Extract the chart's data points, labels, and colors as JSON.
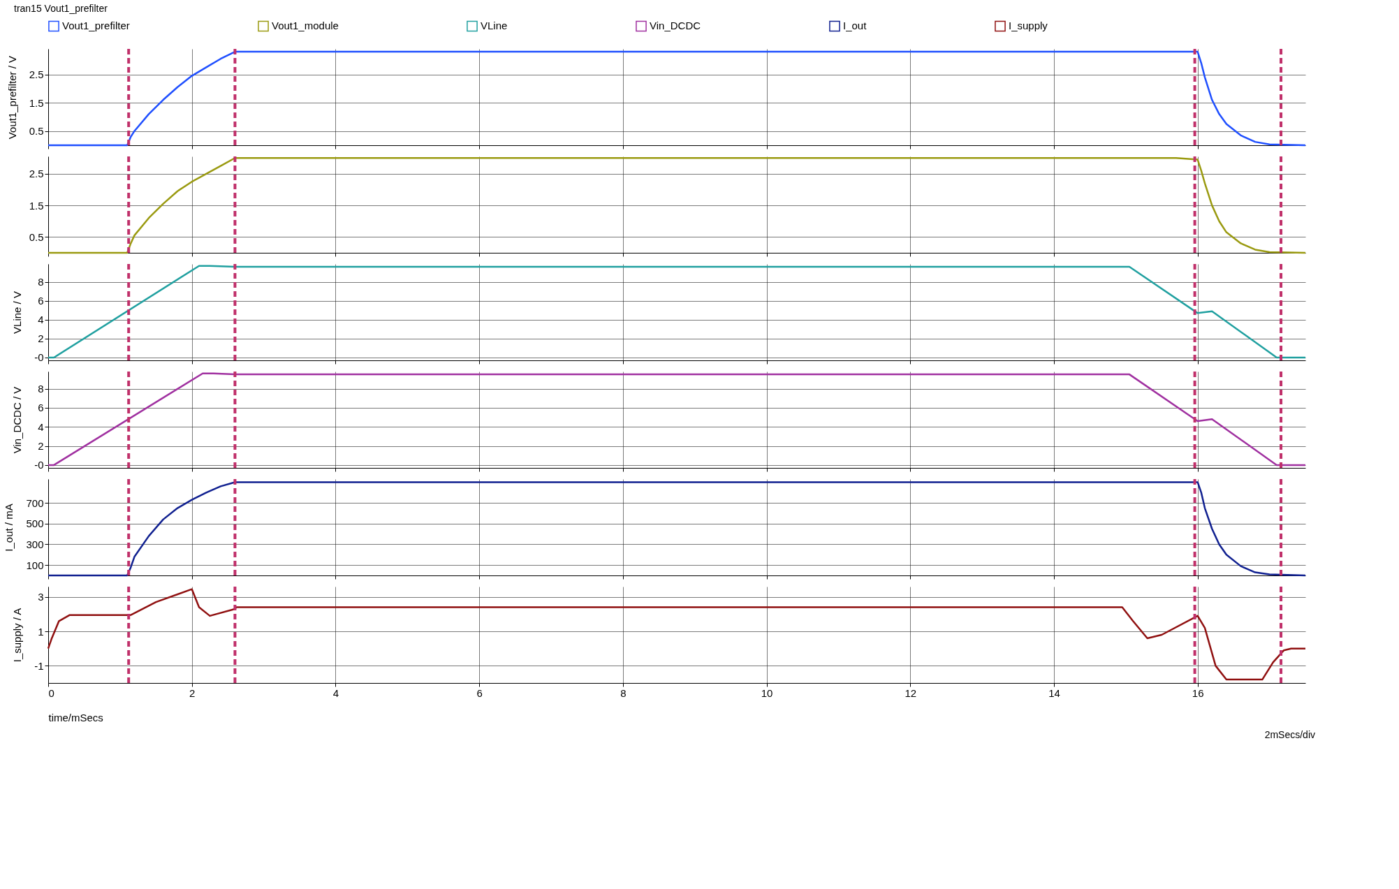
{
  "chart_data": [
    {
      "type": "line",
      "ylabel": "Vout1_prefilter / V",
      "legend": "top",
      "grid": true,
      "tick_labels": "y",
      "annotations": [
        "tran15 Vout1_prefilter"
      ],
      "xlim": [
        0,
        17.5
      ],
      "xticks": [
        0,
        2,
        4,
        6,
        8,
        10,
        12,
        14,
        16
      ],
      "ylim": [
        0,
        3.4
      ],
      "yticks": [
        0.5,
        1.5,
        2.5
      ],
      "ref_lines": [
        {
          "axis": "x",
          "value": 1.12,
          "color": "#c0306a",
          "line_style": "dashed"
        },
        {
          "axis": "x",
          "value": 2.6,
          "color": "#c0306a",
          "line_style": "dashed"
        },
        {
          "axis": "x",
          "value": 15.96,
          "color": "#c0306a",
          "line_style": "dashed"
        },
        {
          "axis": "x",
          "value": 17.16,
          "color": "#c0306a",
          "line_style": "dashed"
        }
      ],
      "series": [
        {
          "name": "Vout1_prefilter",
          "color": "#1f4fff",
          "x": [
            0,
            1.1,
            1.15,
            1.2,
            1.4,
            1.6,
            1.8,
            2.0,
            2.2,
            2.4,
            2.6,
            15.7,
            16.0,
            16.05,
            16.1,
            16.2,
            16.3,
            16.4,
            16.6,
            16.8,
            17.0,
            17.5
          ],
          "values": [
            0,
            0,
            0.3,
            0.5,
            1.1,
            1.6,
            2.05,
            2.45,
            2.75,
            3.05,
            3.3,
            3.3,
            3.3,
            2.9,
            2.4,
            1.6,
            1.1,
            0.75,
            0.35,
            0.12,
            0.03,
            0
          ]
        }
      ]
    },
    {
      "type": "line",
      "legend": "top",
      "grid": true,
      "tick_labels": "y",
      "xlim": [
        0,
        17.5
      ],
      "xticks": [
        0,
        2,
        4,
        6,
        8,
        10,
        12,
        14,
        16
      ],
      "ylim": [
        0,
        3.05
      ],
      "yticks": [
        0.5,
        1.5,
        2.5
      ],
      "ref_lines": [
        {
          "axis": "x",
          "value": 1.12,
          "color": "#c0306a",
          "line_style": "dashed"
        },
        {
          "axis": "x",
          "value": 2.6,
          "color": "#c0306a",
          "line_style": "dashed"
        },
        {
          "axis": "x",
          "value": 15.96,
          "color": "#c0306a",
          "line_style": "dashed"
        },
        {
          "axis": "x",
          "value": 17.16,
          "color": "#c0306a",
          "line_style": "dashed"
        }
      ],
      "series": [
        {
          "name": "Vout1_module",
          "color": "#9a9a10",
          "x": [
            0,
            1.1,
            1.15,
            1.2,
            1.4,
            1.6,
            1.8,
            2.0,
            2.2,
            2.4,
            2.6,
            15.7,
            16.0,
            16.05,
            16.1,
            16.2,
            16.3,
            16.4,
            16.6,
            16.8,
            17.0,
            17.5
          ],
          "values": [
            0,
            0,
            0.3,
            0.55,
            1.1,
            1.55,
            1.95,
            2.25,
            2.5,
            2.75,
            3.0,
            3.0,
            2.95,
            2.6,
            2.2,
            1.5,
            1.0,
            0.65,
            0.3,
            0.1,
            0.02,
            0
          ]
        }
      ]
    },
    {
      "type": "line",
      "ylabel": "VLine / V",
      "legend": "top",
      "grid": true,
      "tick_labels": "y",
      "xlim": [
        0,
        17.5
      ],
      "xticks": [
        0,
        2,
        4,
        6,
        8,
        10,
        12,
        14,
        16
      ],
      "ylim": [
        -0.3,
        9.9
      ],
      "yticks": [
        {
          "value": 0,
          "label": "-0"
        },
        2,
        4,
        6,
        8
      ],
      "ref_lines": [
        {
          "axis": "x",
          "value": 1.12,
          "color": "#c0306a",
          "line_style": "dashed"
        },
        {
          "axis": "x",
          "value": 2.6,
          "color": "#c0306a",
          "line_style": "dashed"
        },
        {
          "axis": "x",
          "value": 15.96,
          "color": "#c0306a",
          "line_style": "dashed"
        },
        {
          "axis": "x",
          "value": 17.16,
          "color": "#c0306a",
          "line_style": "dashed"
        }
      ],
      "series": [
        {
          "name": "VLine",
          "color": "#20a0a0",
          "x": [
            0,
            0.08,
            2.1,
            2.25,
            2.6,
            15.05,
            16.0,
            16.2,
            17.1,
            17.5
          ],
          "values": [
            0,
            0,
            9.7,
            9.7,
            9.6,
            9.6,
            4.7,
            4.9,
            0,
            0
          ]
        }
      ]
    },
    {
      "type": "line",
      "ylabel": "Vin_DCDC / V",
      "legend": "top",
      "grid": true,
      "tick_labels": "y",
      "xlim": [
        0,
        17.5
      ],
      "xticks": [
        0,
        2,
        4,
        6,
        8,
        10,
        12,
        14,
        16
      ],
      "ylim": [
        -0.3,
        9.8
      ],
      "yticks": [
        {
          "value": 0,
          "label": "-0"
        },
        2,
        4,
        6,
        8
      ],
      "ref_lines": [
        {
          "axis": "x",
          "value": 1.12,
          "color": "#c0306a",
          "line_style": "dashed"
        },
        {
          "axis": "x",
          "value": 2.6,
          "color": "#c0306a",
          "line_style": "dashed"
        },
        {
          "axis": "x",
          "value": 15.96,
          "color": "#c0306a",
          "line_style": "dashed"
        },
        {
          "axis": "x",
          "value": 17.16,
          "color": "#c0306a",
          "line_style": "dashed"
        }
      ],
      "series": [
        {
          "name": "Vin_DCDC",
          "color": "#a030a0",
          "x": [
            0,
            0.08,
            2.15,
            2.3,
            2.6,
            15.05,
            16.0,
            16.2,
            17.1,
            17.5
          ],
          "values": [
            0,
            0,
            9.6,
            9.6,
            9.5,
            9.5,
            4.6,
            4.8,
            0,
            0
          ]
        }
      ]
    },
    {
      "type": "line",
      "ylabel": "I_out / mA",
      "legend": "top",
      "grid": true,
      "tick_labels": "y",
      "xlim": [
        0,
        17.5
      ],
      "xticks": [
        0,
        2,
        4,
        6,
        8,
        10,
        12,
        14,
        16
      ],
      "ylim": [
        0,
        930
      ],
      "yticks": [
        100,
        300,
        500,
        700
      ],
      "ref_lines": [
        {
          "axis": "x",
          "value": 1.12,
          "color": "#c0306a",
          "line_style": "dashed"
        },
        {
          "axis": "x",
          "value": 2.6,
          "color": "#c0306a",
          "line_style": "dashed"
        },
        {
          "axis": "x",
          "value": 15.96,
          "color": "#c0306a",
          "line_style": "dashed"
        },
        {
          "axis": "x",
          "value": 17.16,
          "color": "#c0306a",
          "line_style": "dashed"
        }
      ],
      "series": [
        {
          "name": "I_out",
          "color": "#102090",
          "x": [
            0,
            1.1,
            1.15,
            1.2,
            1.4,
            1.6,
            1.8,
            2.0,
            2.2,
            2.4,
            2.6,
            15.7,
            16.0,
            16.05,
            16.1,
            16.2,
            16.3,
            16.4,
            16.6,
            16.8,
            17.0,
            17.5
          ],
          "values": [
            0,
            0,
            80,
            180,
            380,
            540,
            650,
            730,
            800,
            860,
            900,
            900,
            900,
            800,
            650,
            450,
            300,
            200,
            90,
            30,
            10,
            0
          ]
        }
      ]
    },
    {
      "type": "line",
      "ylabel": "I_supply / A",
      "xlabel": "time/mSecs",
      "legend": "top",
      "grid": true,
      "annotations": [
        "2mSecs/div"
      ],
      "xlim": [
        0,
        17.5
      ],
      "xticks": [
        0,
        2,
        4,
        6,
        8,
        10,
        12,
        14,
        16
      ],
      "ylim": [
        -2,
        3.6
      ],
      "yticks": [
        -1,
        1,
        3
      ],
      "ref_lines": [
        {
          "axis": "x",
          "value": 1.12,
          "color": "#c0306a",
          "line_style": "dashed"
        },
        {
          "axis": "x",
          "value": 2.6,
          "color": "#c0306a",
          "line_style": "dashed"
        },
        {
          "axis": "x",
          "value": 15.96,
          "color": "#c0306a",
          "line_style": "dashed"
        },
        {
          "axis": "x",
          "value": 17.16,
          "color": "#c0306a",
          "line_style": "dashed"
        }
      ],
      "series": [
        {
          "name": "I_supply",
          "color": "#901010",
          "x": [
            0,
            0.05,
            0.15,
            0.3,
            1.15,
            1.5,
            2.0,
            2.1,
            2.25,
            2.6,
            2.62,
            14.95,
            15.1,
            15.3,
            15.5,
            16.0,
            16.1,
            16.25,
            16.4,
            16.9,
            17.05,
            17.2,
            17.3,
            17.5
          ],
          "values": [
            0,
            0.6,
            1.6,
            1.95,
            1.95,
            2.7,
            3.45,
            2.4,
            1.9,
            2.3,
            2.4,
            2.4,
            1.6,
            0.6,
            0.8,
            1.9,
            1.2,
            -1.0,
            -1.8,
            -1.8,
            -0.8,
            -0.1,
            0,
            0
          ]
        }
      ]
    }
  ]
}
